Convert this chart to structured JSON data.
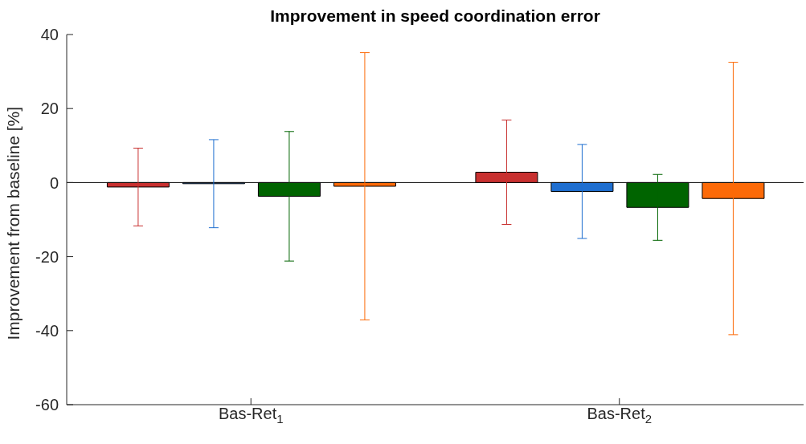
{
  "chart_data": {
    "type": "bar",
    "title": "Improvement in speed coordination error",
    "ylabel": "Improvement from baseline [%]",
    "categories": [
      "Bas-Ret$_{1}$",
      "Bas-Ret$_{2}$"
    ],
    "series": [
      {
        "color": "#c8302f",
        "values": [
          -1.2,
          2.8
        ],
        "errors": [
          10.5,
          14.1
        ]
      },
      {
        "color": "#1f6fd0",
        "values": [
          -0.3,
          -2.4
        ],
        "errors": [
          11.9,
          12.7
        ]
      },
      {
        "color": "#006400",
        "values": [
          -3.7,
          -6.7
        ],
        "errors": [
          17.5,
          8.9
        ]
      },
      {
        "color": "#fc6a08",
        "values": [
          -1,
          -4.3
        ],
        "errors": [
          36.1,
          36.8
        ]
      }
    ],
    "ylim": [
      -60,
      40
    ],
    "yticks": [
      -60,
      -40,
      -20,
      0,
      20,
      40
    ],
    "ref_lines": [
      {
        "axis": "y",
        "value": 0,
        "color": "#000000"
      }
    ],
    "grid": false,
    "legend": false
  }
}
